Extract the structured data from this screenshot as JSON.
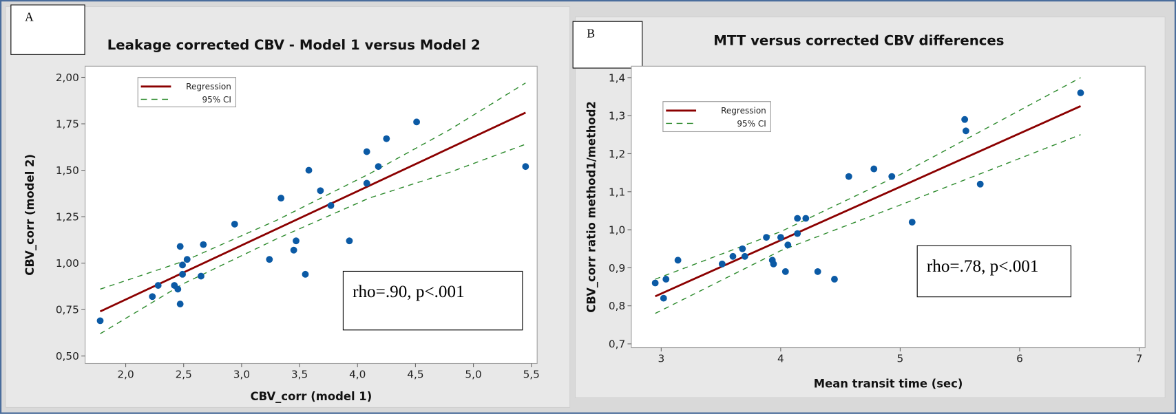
{
  "colors": {
    "points": "#0b5aa5",
    "regression": "#8b0000",
    "ci": "#2e8b2e"
  },
  "panels": [
    {
      "label": "A",
      "stat_text": "rho=.90, p<.001"
    },
    {
      "label": "B",
      "stat_text": "rho=.78, p<.001"
    }
  ],
  "chart_data": [
    {
      "type": "scatter",
      "title": "Leakage corrected CBV - Model 1 versus Model 2",
      "xlabel": "CBV_corr (model 1)",
      "ylabel": "CBV_corr (model 2)",
      "xlim": [
        1.65,
        5.55
      ],
      "ylim": [
        0.46,
        2.06
      ],
      "xticks": [
        2.0,
        2.5,
        3.0,
        3.5,
        4.0,
        4.5,
        5.0,
        5.5
      ],
      "xtick_labels": [
        "2,0",
        "2,5",
        "3,0",
        "3,5",
        "4,0",
        "4,5",
        "5,0",
        "5,5"
      ],
      "yticks": [
        0.5,
        0.75,
        1.0,
        1.25,
        1.5,
        1.75,
        2.0
      ],
      "ytick_labels": [
        "0,50",
        "0,75",
        "1,00",
        "1,25",
        "1,50",
        "1,75",
        "2,00"
      ],
      "grid": false,
      "legend": {
        "placement": "top-left",
        "entries": [
          "Regression",
          "95% CI"
        ]
      },
      "points": [
        [
          1.78,
          0.69
        ],
        [
          2.23,
          0.82
        ],
        [
          2.28,
          0.88
        ],
        [
          2.42,
          0.88
        ],
        [
          2.45,
          0.86
        ],
        [
          2.47,
          0.78
        ],
        [
          2.47,
          1.09
        ],
        [
          2.49,
          0.99
        ],
        [
          2.49,
          0.94
        ],
        [
          2.53,
          1.02
        ],
        [
          2.65,
          0.93
        ],
        [
          2.67,
          1.1
        ],
        [
          2.94,
          1.21
        ],
        [
          3.24,
          1.02
        ],
        [
          3.34,
          1.35
        ],
        [
          3.45,
          1.07
        ],
        [
          3.47,
          1.12
        ],
        [
          3.55,
          0.94
        ],
        [
          3.58,
          1.5
        ],
        [
          3.68,
          1.39
        ],
        [
          3.77,
          1.31
        ],
        [
          3.93,
          1.12
        ],
        [
          4.08,
          1.6
        ],
        [
          4.08,
          1.43
        ],
        [
          4.18,
          1.52
        ],
        [
          4.25,
          1.67
        ],
        [
          4.51,
          1.76
        ],
        [
          5.45,
          1.52
        ]
      ],
      "regression": [
        [
          1.78,
          0.74
        ],
        [
          5.45,
          1.81
        ]
      ],
      "ci": [
        [
          1.78,
          0.62,
          0.86
        ],
        [
          2.5,
          0.89,
          1.01
        ],
        [
          3.3,
          1.13,
          1.23
        ],
        [
          4.1,
          1.35,
          1.48
        ],
        [
          4.8,
          1.49,
          1.72
        ],
        [
          5.45,
          1.64,
          1.97
        ]
      ]
    },
    {
      "type": "scatter",
      "title": "MTT versus corrected CBV differences",
      "xlabel": "Mean transit time (sec)",
      "ylabel": "CBV_corr ratio method1/method2",
      "xlim": [
        2.75,
        7.05
      ],
      "ylim": [
        0.69,
        1.43
      ],
      "xticks": [
        3,
        4,
        5,
        6,
        7
      ],
      "xtick_labels": [
        "3",
        "4",
        "5",
        "6",
        "7"
      ],
      "yticks": [
        0.7,
        0.8,
        0.9,
        1.0,
        1.1,
        1.2,
        1.3,
        1.4
      ],
      "ytick_labels": [
        "0,7",
        "0,8",
        "0,9",
        "1,0",
        "1,1",
        "1,2",
        "1,3",
        "1,4"
      ],
      "grid": false,
      "legend": {
        "placement": "top-left",
        "entries": [
          "Regression",
          "95% CI"
        ]
      },
      "points": [
        [
          2.95,
          0.86
        ],
        [
          3.02,
          0.82
        ],
        [
          3.04,
          0.87
        ],
        [
          3.14,
          0.92
        ],
        [
          3.51,
          0.91
        ],
        [
          3.6,
          0.93
        ],
        [
          3.68,
          0.95
        ],
        [
          3.7,
          0.93
        ],
        [
          3.88,
          0.98
        ],
        [
          3.93,
          0.92
        ],
        [
          3.94,
          0.91
        ],
        [
          4.0,
          0.98
        ],
        [
          4.04,
          0.89
        ],
        [
          4.06,
          0.96
        ],
        [
          4.14,
          0.99
        ],
        [
          4.14,
          1.03
        ],
        [
          4.21,
          1.03
        ],
        [
          4.31,
          0.89
        ],
        [
          4.45,
          0.87
        ],
        [
          4.57,
          1.14
        ],
        [
          4.78,
          1.16
        ],
        [
          4.93,
          1.14
        ],
        [
          5.1,
          1.02
        ],
        [
          5.54,
          1.29
        ],
        [
          5.55,
          1.26
        ],
        [
          5.67,
          1.12
        ],
        [
          6.51,
          1.36
        ]
      ],
      "regression": [
        [
          2.95,
          0.825
        ],
        [
          6.51,
          1.325
        ]
      ],
      "ci": [
        [
          2.95,
          0.78,
          0.87
        ],
        [
          4.0,
          0.945,
          0.995
        ],
        [
          5.0,
          1.065,
          1.145
        ],
        [
          6.51,
          1.25,
          1.4
        ]
      ]
    }
  ]
}
